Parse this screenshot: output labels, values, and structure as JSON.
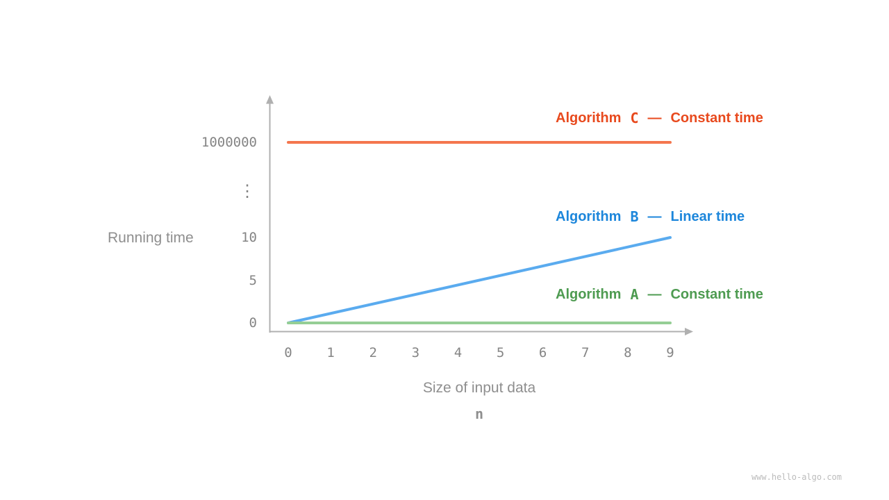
{
  "watermark": "www.hello-algo.com",
  "chart_data": {
    "type": "line",
    "title": "",
    "xlabel": "Size of input data",
    "xlabel_sub": "n",
    "ylabel": "Running time",
    "x_ticks": [
      "0",
      "1",
      "2",
      "3",
      "4",
      "5",
      "6",
      "7",
      "8",
      "9"
    ],
    "y_ticks": [
      "1000000",
      "⋮",
      "10",
      "5",
      "0"
    ],
    "x_range": [
      0,
      9
    ],
    "y_axis_note": "broken axis: 0,5,10 then ellipsis then 1000000",
    "grid": false,
    "legend_position": "right-of-lines",
    "series": [
      {
        "label_prefix": "Algorithm",
        "label_letter": "C",
        "separator": "—",
        "description": "Constant time",
        "text_color": "#E8491D",
        "line_color": "#F4764E",
        "points": [
          [
            0,
            1000000
          ],
          [
            9,
            1000000
          ]
        ]
      },
      {
        "label_prefix": "Algorithm",
        "label_letter": "B",
        "separator": "—",
        "description": "Linear time",
        "text_color": "#1C86DB",
        "line_color": "#5AABEF",
        "points": [
          [
            0,
            0
          ],
          [
            9,
            10
          ]
        ]
      },
      {
        "label_prefix": "Algorithm",
        "label_letter": "A",
        "separator": "—",
        "description": "Constant time",
        "text_color": "#4E9B51",
        "line_color": "#95CE95",
        "points": [
          [
            0,
            0
          ],
          [
            9,
            0
          ]
        ]
      }
    ]
  }
}
